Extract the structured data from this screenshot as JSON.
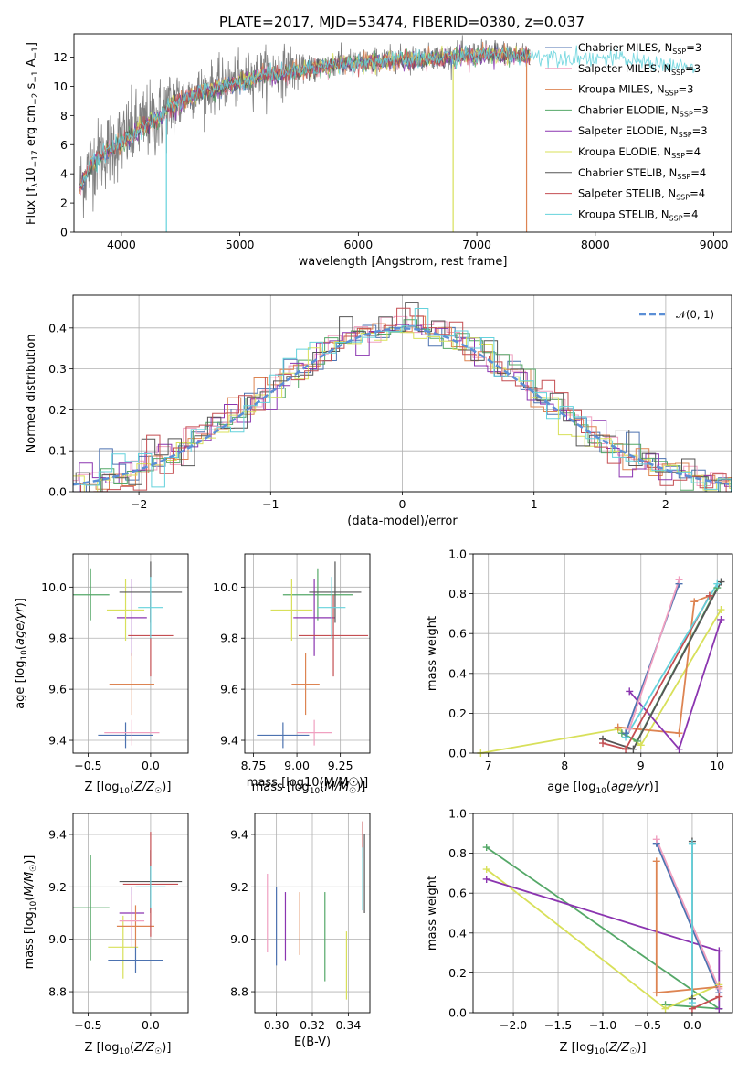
{
  "figure": {
    "title": "PLATE=2017, MJD=53474, FIBERID=0380, z=0.037"
  },
  "colors": {
    "chabrier_miles": "#4c72b0",
    "salpeter_miles": "#f0a0c0",
    "kroupa_miles": "#dd8452",
    "chabrier_elodie": "#55a868",
    "salpeter_elodie": "#8b35b0",
    "kroupa_elodie": "#d8e05a",
    "chabrier_stelib": "#555555",
    "salpeter_stelib": "#c44e52",
    "kroupa_stelib": "#64d2dc",
    "gaussian": "#5b8fd6"
  },
  "chart_data": [
    {
      "id": "spectrum",
      "type": "line",
      "title": "PLATE=2017, MJD=53474, FIBERID=0380, z=0.037",
      "xlabel": "wavelength [Angstrom, rest frame]",
      "ylabel": "Flux [f_λ10^-17 erg cm^-2 s^-1 A^-1]",
      "xlim": [
        3600,
        9150
      ],
      "ylim": [
        0,
        13.6
      ],
      "xticks": [
        4000,
        5000,
        6000,
        7000,
        8000,
        9000
      ],
      "yticks": [
        0,
        2,
        4,
        6,
        8,
        10,
        12
      ],
      "grid": false,
      "legend": "top-right",
      "legend_entries": [
        {
          "label": "Chabrier MILES, N_SSP=3",
          "color": "#4c72b0"
        },
        {
          "label": "Salpeter MILES, N_SSP=3",
          "color": "#f0a0c0"
        },
        {
          "label": "Kroupa MILES, N_SSP=3",
          "color": "#dd8452"
        },
        {
          "label": "Chabrier ELODIE, N_SSP=3",
          "color": "#55a868"
        },
        {
          "label": "Salpeter ELODIE, N_SSP=3",
          "color": "#8b35b0"
        },
        {
          "label": "Kroupa ELODIE, N_SSP=4",
          "color": "#d8e05a"
        },
        {
          "label": "Chabrier STELIB, N_SSP=4",
          "color": "#555555"
        },
        {
          "label": "Salpeter STELIB, N_SSP=4",
          "color": "#c44e52"
        },
        {
          "label": "Kroupa STELIB, N_SSP=4",
          "color": "#64d2dc"
        }
      ],
      "continuum": [
        [
          3650,
          3.2
        ],
        [
          3750,
          4.8
        ],
        [
          3900,
          5.8
        ],
        [
          4000,
          6.3
        ],
        [
          4100,
          6.9
        ],
        [
          4200,
          7.5
        ],
        [
          4300,
          7.8
        ],
        [
          4400,
          8.6
        ],
        [
          4500,
          9.0
        ],
        [
          4600,
          9.6
        ],
        [
          4800,
          10.0
        ],
        [
          5000,
          10.4
        ],
        [
          5200,
          10.9
        ],
        [
          5500,
          11.2
        ],
        [
          5800,
          11.6
        ],
        [
          6000,
          11.7
        ],
        [
          6300,
          11.9
        ],
        [
          6600,
          12.0
        ],
        [
          6900,
          12.2
        ],
        [
          7200,
          12.3
        ],
        [
          7500,
          12.2
        ],
        [
          7800,
          12.1
        ],
        [
          8200,
          12.0
        ],
        [
          8600,
          11.6
        ],
        [
          8850,
          11.3
        ]
      ],
      "data_range": [
        3650,
        7450
      ],
      "stelib_range": [
        3650,
        8850
      ],
      "drop_lines": [
        {
          "series": "Kroupa ELODIE",
          "x": 6800,
          "y_from": 11.5,
          "y_to": 0
        },
        {
          "series": "Salpeter STELIB",
          "x": 7420,
          "y_from": 12.2,
          "y_to": 0
        },
        {
          "series": "Kroupa STELIB",
          "x": 4380,
          "y_from": 7.8,
          "y_to": 0
        }
      ]
    },
    {
      "id": "residuals",
      "type": "step",
      "xlabel": "(data-model)/error",
      "ylabel": "Normed distribution",
      "xlim": [
        -2.5,
        2.5
      ],
      "ylim": [
        0,
        0.48
      ],
      "xticks": [
        -2,
        -1,
        0,
        1,
        2
      ],
      "yticks": [
        0.0,
        0.1,
        0.2,
        0.3,
        0.4
      ],
      "grid": true,
      "legend": "top-right",
      "gaussian_label": "𝒩(0, 1)",
      "bin_width": 0.1
    },
    {
      "id": "age_vs_Z",
      "type": "errorbar",
      "xlabel": "Z [log10(Z/Z☉)]",
      "ylabel": "age  [log10(age/yr)]",
      "xlim": [
        -0.62,
        0.3
      ],
      "ylim": [
        9.35,
        10.13
      ],
      "xticks": [
        -0.5,
        0.0
      ],
      "yticks": [
        9.4,
        9.6,
        9.8,
        10.0
      ],
      "grid": true,
      "points": [
        {
          "x": -0.48,
          "xerr": 0.15,
          "y": 9.97,
          "yerr": 0.1,
          "color": "#55a868"
        },
        {
          "x": -0.15,
          "xerr": 0.12,
          "y": 9.88,
          "yerr": 0.15,
          "color": "#8b35b0"
        },
        {
          "x": -0.2,
          "xerr": 0.15,
          "y": 9.91,
          "yerr": 0.12,
          "color": "#d8e05a"
        },
        {
          "x": -0.15,
          "xerr": 0.18,
          "y": 9.62,
          "yerr": 0.12,
          "color": "#dd8452"
        },
        {
          "x": 0.0,
          "xerr": 0.25,
          "y": 9.98,
          "yerr": 0.12,
          "color": "#555555"
        },
        {
          "x": 0.0,
          "xerr": 0.18,
          "y": 9.81,
          "yerr": 0.16,
          "color": "#c44e52"
        },
        {
          "x": 0.0,
          "xerr": 0.1,
          "y": 9.92,
          "yerr": 0.12,
          "color": "#64d2dc"
        },
        {
          "x": -0.2,
          "xerr": 0.22,
          "y": 9.42,
          "yerr": 0.05,
          "color": "#4c72b0"
        },
        {
          "x": -0.15,
          "xerr": 0.22,
          "y": 9.43,
          "yerr": 0.05,
          "color": "#f0a0c0"
        }
      ]
    },
    {
      "id": "age_vs_mass",
      "type": "errorbar",
      "xlabel": "mass [log10(M/M☉)]",
      "ylabel": "",
      "xlim": [
        8.7,
        9.42
      ],
      "ylim": [
        9.35,
        10.13
      ],
      "xticks": [
        8.75,
        9.0,
        9.25
      ],
      "yticks": [
        9.4,
        9.6,
        9.8,
        10.0
      ],
      "grid": true,
      "points": [
        {
          "x": 9.12,
          "xerr": 0.2,
          "y": 9.97,
          "yerr": 0.1,
          "color": "#55a868"
        },
        {
          "x": 8.97,
          "xerr": 0.12,
          "y": 9.91,
          "yerr": 0.12,
          "color": "#d8e05a"
        },
        {
          "x": 9.1,
          "xerr": 0.12,
          "y": 9.88,
          "yerr": 0.15,
          "color": "#8b35b0"
        },
        {
          "x": 9.22,
          "xerr": 0.15,
          "y": 9.98,
          "yerr": 0.12,
          "color": "#555555"
        },
        {
          "x": 9.21,
          "xerr": 0.2,
          "y": 9.81,
          "yerr": 0.16,
          "color": "#c44e52"
        },
        {
          "x": 9.2,
          "xerr": 0.08,
          "y": 9.92,
          "yerr": 0.12,
          "color": "#64d2dc"
        },
        {
          "x": 9.05,
          "xerr": 0.08,
          "y": 9.62,
          "yerr": 0.12,
          "color": "#dd8452"
        },
        {
          "x": 8.92,
          "xerr": 0.15,
          "y": 9.42,
          "yerr": 0.05,
          "color": "#4c72b0"
        },
        {
          "x": 9.1,
          "xerr": 0.1,
          "y": 9.43,
          "yerr": 0.05,
          "color": "#f0a0c0"
        }
      ]
    },
    {
      "id": "mass_weight_vs_age",
      "type": "line",
      "xlabel": "age  [log10(age/yr)]",
      "ylabel": "mass weight",
      "xlim": [
        6.8,
        10.2
      ],
      "ylim": [
        0,
        1
      ],
      "xticks": [
        7,
        8,
        9,
        10
      ],
      "yticks": [
        0.0,
        0.2,
        0.4,
        0.6,
        0.8,
        1.0
      ],
      "grid": true,
      "series": [
        {
          "color": "#d8e05a",
          "x": [
            6.9,
            8.7,
            9.0,
            10.05
          ],
          "y": [
            0.0,
            0.12,
            0.04,
            0.72
          ]
        },
        {
          "color": "#dd8452",
          "x": [
            8.7,
            9.5,
            9.7,
            9.9
          ],
          "y": [
            0.13,
            0.1,
            0.76,
            0.79
          ]
        },
        {
          "color": "#8b35b0",
          "x": [
            8.85,
            9.5,
            10.05
          ],
          "y": [
            0.31,
            0.02,
            0.67
          ]
        },
        {
          "color": "#55a868",
          "x": [
            8.75,
            8.95,
            10.0
          ],
          "y": [
            0.1,
            0.06,
            0.83
          ]
        },
        {
          "color": "#555555",
          "x": [
            8.5,
            8.9,
            10.05
          ],
          "y": [
            0.07,
            0.02,
            0.86
          ]
        },
        {
          "color": "#c44e52",
          "x": [
            8.5,
            8.8,
            9.9
          ],
          "y": [
            0.05,
            0.02,
            0.79
          ]
        },
        {
          "color": "#64d2dc",
          "x": [
            8.8,
            10.0
          ],
          "y": [
            0.08,
            0.85
          ]
        },
        {
          "color": "#4c72b0",
          "x": [
            8.8,
            9.5
          ],
          "y": [
            0.1,
            0.85
          ]
        },
        {
          "color": "#f0a0c0",
          "x": [
            8.85,
            9.5
          ],
          "y": [
            0.12,
            0.87
          ]
        }
      ]
    },
    {
      "id": "mass_vs_Z",
      "type": "errorbar",
      "xlabel": "Z [log10(Z/Z☉)]",
      "ylabel": "mass [log10(M/M☉)]",
      "xlim": [
        -0.62,
        0.3
      ],
      "ylim": [
        8.72,
        9.48
      ],
      "xticks": [
        -0.5,
        0.0
      ],
      "yticks": [
        8.8,
        9.0,
        9.2,
        9.4
      ],
      "grid": true,
      "points": [
        {
          "x": -0.48,
          "xerr": 0.15,
          "y": 9.12,
          "yerr": 0.2,
          "color": "#55a868"
        },
        {
          "x": -0.15,
          "xerr": 0.1,
          "y": 9.1,
          "yerr": 0.1,
          "color": "#8b35b0"
        },
        {
          "x": -0.22,
          "xerr": 0.12,
          "y": 8.97,
          "yerr": 0.12,
          "color": "#d8e05a"
        },
        {
          "x": -0.12,
          "xerr": 0.15,
          "y": 9.05,
          "yerr": 0.08,
          "color": "#dd8452"
        },
        {
          "x": 0.0,
          "xerr": 0.25,
          "y": 9.22,
          "yerr": 0.12,
          "color": "#555555"
        },
        {
          "x": 0.0,
          "xerr": 0.22,
          "y": 9.21,
          "yerr": 0.2,
          "color": "#c44e52"
        },
        {
          "x": 0.0,
          "xerr": 0.12,
          "y": 9.2,
          "yerr": 0.08,
          "color": "#64d2dc"
        },
        {
          "x": -0.15,
          "xerr": 0.1,
          "y": 9.07,
          "yerr": 0.1,
          "color": "#f0a0c0"
        },
        {
          "x": -0.12,
          "xerr": 0.22,
          "y": 8.92,
          "yerr": 0.05,
          "color": "#4c72b0"
        }
      ]
    },
    {
      "id": "mass_vs_ebv",
      "type": "errorbar",
      "xlabel": "E(B-V)",
      "ylabel": "",
      "xlim": [
        0.288,
        0.352
      ],
      "ylim": [
        8.72,
        9.48
      ],
      "xticks": [
        0.3,
        0.32,
        0.34
      ],
      "yticks": [
        8.8,
        9.0,
        9.2,
        9.4
      ],
      "grid": true,
      "points": [
        {
          "x": 0.295,
          "y": 9.1,
          "yerr": 0.15,
          "color": "#f0a0c0"
        },
        {
          "x": 0.3,
          "y": 9.05,
          "yerr": 0.15,
          "color": "#4c72b0"
        },
        {
          "x": 0.305,
          "y": 9.05,
          "yerr": 0.13,
          "color": "#8b35b0"
        },
        {
          "x": 0.313,
          "y": 9.06,
          "yerr": 0.12,
          "color": "#dd8452"
        },
        {
          "x": 0.327,
          "y": 9.01,
          "yerr": 0.17,
          "color": "#55a868"
        },
        {
          "x": 0.339,
          "y": 8.9,
          "yerr": 0.13,
          "color": "#d8e05a"
        },
        {
          "x": 0.348,
          "y": 9.38,
          "yerr": 0.07,
          "color": "#c44e52"
        },
        {
          "x": 0.348,
          "y": 9.23,
          "yerr": 0.12,
          "color": "#64d2dc"
        },
        {
          "x": 0.349,
          "y": 9.25,
          "yerr": 0.15,
          "color": "#555555"
        }
      ]
    },
    {
      "id": "mass_weight_vs_Z",
      "type": "line",
      "xlabel": "Z [log10(Z/Z☉)]",
      "ylabel": "mass weight",
      "xlim": [
        -2.45,
        0.45
      ],
      "ylim": [
        0,
        1
      ],
      "xticks": [
        -2.0,
        -1.5,
        -1.0,
        -0.5,
        0.0
      ],
      "yticks": [
        0.0,
        0.2,
        0.4,
        0.6,
        0.8,
        1.0
      ],
      "grid": true,
      "series": [
        {
          "color": "#55a868",
          "x": [
            -2.3,
            0.3,
            -0.3
          ],
          "y": [
            0.83,
            0.02,
            0.04
          ]
        },
        {
          "color": "#d8e05a",
          "x": [
            -2.3,
            -0.3,
            0.3
          ],
          "y": [
            0.72,
            0.02,
            0.14
          ]
        },
        {
          "color": "#8b35b0",
          "x": [
            -2.3,
            0.3,
            0.3
          ],
          "y": [
            0.67,
            0.31,
            0.02
          ]
        },
        {
          "color": "#dd8452",
          "x": [
            -0.4,
            -0.4,
            0.3
          ],
          "y": [
            0.76,
            0.1,
            0.13
          ]
        },
        {
          "color": "#4c72b0",
          "x": [
            -0.4,
            0.3
          ],
          "y": [
            0.85,
            0.1
          ]
        },
        {
          "color": "#f0a0c0",
          "x": [
            -0.4,
            0.3
          ],
          "y": [
            0.87,
            0.12
          ]
        },
        {
          "color": "#555555",
          "x": [
            0.0,
            0.0
          ],
          "y": [
            0.86,
            0.07
          ]
        },
        {
          "color": "#c44e52",
          "x": [
            0.0,
            0.3
          ],
          "y": [
            0.02,
            0.08
          ]
        },
        {
          "color": "#64d2dc",
          "x": [
            0.0,
            0.0
          ],
          "y": [
            0.85,
            0.05
          ]
        }
      ]
    }
  ]
}
